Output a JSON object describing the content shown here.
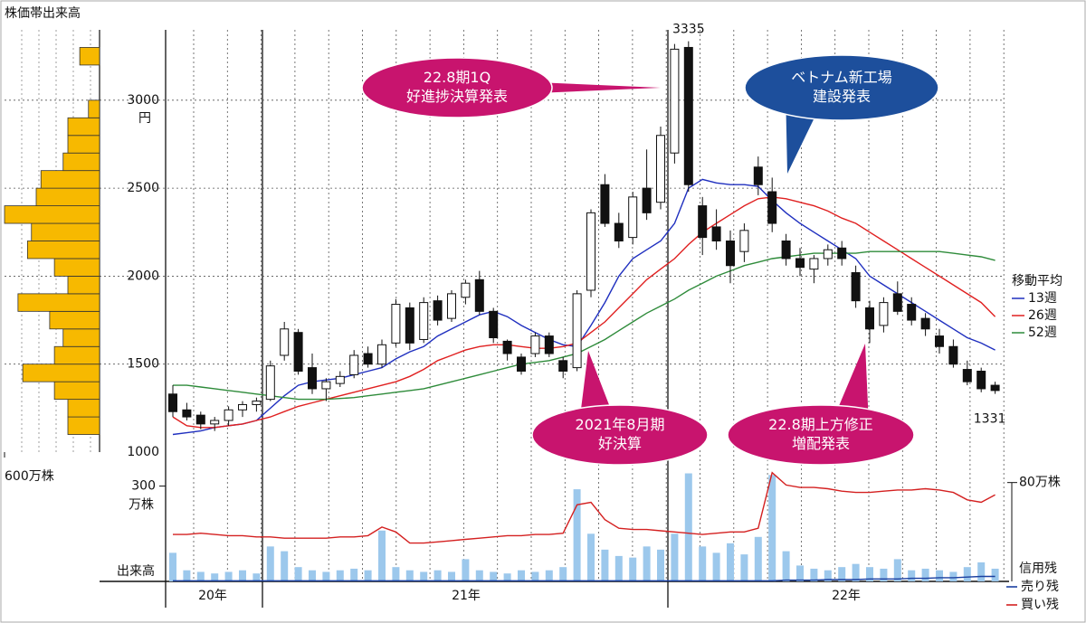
{
  "chart_data": [
    {
      "type": "candlestick",
      "x_labels": [
        "20年",
        "21年",
        "22年"
      ],
      "open": [
        1330,
        1240,
        1210,
        1160,
        1180,
        1240,
        1270,
        1300,
        1550,
        1680,
        1480,
        1360,
        1390,
        1440,
        1560,
        1500,
        1620,
        1820,
        1640,
        1860,
        1760,
        1880,
        1980,
        1800,
        1630,
        1540,
        1560,
        1660,
        1520,
        1480,
        1920,
        2520,
        2300,
        2220,
        2500,
        2420,
        2700,
        3300,
        2400,
        2280,
        2200,
        2140,
        2620,
        2480,
        2200,
        2100,
        2040,
        2100,
        2160,
        2020,
        1820,
        1720,
        1900,
        1840,
        1760,
        1660,
        1600,
        1470,
        1460,
        1380
      ],
      "high": [
        1380,
        1280,
        1230,
        1200,
        1260,
        1290,
        1310,
        1520,
        1740,
        1700,
        1560,
        1420,
        1460,
        1580,
        1600,
        1640,
        1870,
        1850,
        1880,
        1890,
        1920,
        1980,
        2030,
        1820,
        1640,
        1560,
        1680,
        1680,
        1540,
        1920,
        2380,
        2580,
        2360,
        2480,
        2720,
        2850,
        3320,
        3335,
        2450,
        2380,
        2260,
        2300,
        2680,
        2560,
        2240,
        2160,
        2120,
        2180,
        2200,
        2060,
        1860,
        1880,
        1970,
        1880,
        1790,
        1700,
        1640,
        1520,
        1480,
        1400
      ],
      "low": [
        1200,
        1180,
        1130,
        1120,
        1150,
        1200,
        1230,
        1290,
        1520,
        1440,
        1330,
        1290,
        1370,
        1420,
        1480,
        1480,
        1600,
        1580,
        1620,
        1720,
        1740,
        1840,
        1780,
        1620,
        1520,
        1440,
        1540,
        1540,
        1420,
        1460,
        1880,
        2280,
        2160,
        2180,
        2320,
        2380,
        2640,
        2480,
        2120,
        2150,
        1960,
        2080,
        2460,
        2250,
        2060,
        2000,
        1960,
        2060,
        2060,
        1820,
        1620,
        1680,
        1780,
        1720,
        1660,
        1560,
        1480,
        1380,
        1340,
        1331
      ],
      "close": [
        1230,
        1200,
        1160,
        1180,
        1240,
        1270,
        1290,
        1490,
        1700,
        1460,
        1360,
        1400,
        1430,
        1550,
        1500,
        1610,
        1840,
        1620,
        1850,
        1750,
        1900,
        1960,
        1800,
        1650,
        1560,
        1460,
        1660,
        1560,
        1460,
        1900,
        2360,
        2300,
        2200,
        2450,
        2360,
        2800,
        3290,
        2520,
        2220,
        2200,
        2060,
        2260,
        2520,
        2300,
        2100,
        2050,
        2100,
        2150,
        2100,
        1860,
        1700,
        1850,
        1800,
        1750,
        1700,
        1600,
        1500,
        1400,
        1360,
        1350
      ],
      "ylim": [
        1000,
        3400
      ],
      "yticks": [
        1000,
        1500,
        2000,
        2500,
        3000
      ],
      "y_unit": "円",
      "grid": true,
      "legend_title": "移動平均",
      "series": [
        {
          "name": "13週",
          "color": "#1f2fbf",
          "values": [
            1100,
            1110,
            1120,
            1140,
            1150,
            1160,
            1180,
            1250,
            1320,
            1380,
            1400,
            1410,
            1420,
            1440,
            1460,
            1480,
            1530,
            1570,
            1600,
            1660,
            1700,
            1740,
            1780,
            1800,
            1770,
            1720,
            1680,
            1640,
            1610,
            1600,
            1720,
            1850,
            2000,
            2100,
            2150,
            2200,
            2300,
            2500,
            2550,
            2530,
            2520,
            2520,
            2510,
            2430,
            2360,
            2300,
            2250,
            2200,
            2150,
            2100,
            2000,
            1950,
            1900,
            1850,
            1800,
            1750,
            1700,
            1650,
            1620,
            1580
          ]
        },
        {
          "name": "26週",
          "color": "#e02020",
          "values": [
            1200,
            1150,
            1140,
            1140,
            1150,
            1160,
            1180,
            1200,
            1230,
            1260,
            1280,
            1300,
            1320,
            1340,
            1360,
            1380,
            1400,
            1430,
            1470,
            1520,
            1550,
            1580,
            1600,
            1610,
            1610,
            1600,
            1590,
            1590,
            1600,
            1620,
            1680,
            1740,
            1820,
            1900,
            1980,
            2040,
            2100,
            2180,
            2250,
            2300,
            2350,
            2400,
            2440,
            2450,
            2440,
            2420,
            2400,
            2370,
            2330,
            2300,
            2250,
            2200,
            2150,
            2100,
            2050,
            2000,
            1950,
            1900,
            1850,
            1770
          ]
        },
        {
          "name": "52週",
          "color": "#2e8b3a",
          "values": [
            1380,
            1380,
            1370,
            1360,
            1350,
            1340,
            1330,
            1320,
            1310,
            1300,
            1300,
            1300,
            1305,
            1310,
            1320,
            1330,
            1340,
            1350,
            1360,
            1380,
            1400,
            1420,
            1440,
            1460,
            1480,
            1500,
            1510,
            1520,
            1540,
            1560,
            1600,
            1640,
            1690,
            1740,
            1790,
            1830,
            1870,
            1920,
            1960,
            2000,
            2030,
            2060,
            2080,
            2100,
            2110,
            2120,
            2130,
            2130,
            2130,
            2130,
            2140,
            2140,
            2140,
            2140,
            2140,
            2140,
            2130,
            2120,
            2110,
            2090
          ]
        }
      ],
      "annotations": [
        {
          "lines": [
            "22.8期1Q",
            "好進捗決算発表"
          ]
        },
        {
          "lines": [
            "ベトナム新工場",
            "建設発表"
          ]
        },
        {
          "lines": [
            "2021年8月期",
            "好決算"
          ]
        },
        {
          "lines": [
            "22.8期上方修正",
            "増配発表"
          ]
        }
      ]
    },
    {
      "type": "bar",
      "label": "出来高",
      "y_unit": "万株",
      "color": "#9cc8ec",
      "values": [
        90,
        35,
        30,
        25,
        30,
        35,
        25,
        110,
        95,
        45,
        35,
        30,
        35,
        40,
        35,
        160,
        45,
        35,
        30,
        35,
        30,
        70,
        35,
        30,
        25,
        35,
        30,
        35,
        45,
        290,
        150,
        100,
        80,
        75,
        110,
        100,
        150,
        340,
        110,
        90,
        120,
        85,
        140,
        335,
        95,
        50,
        40,
        35,
        45,
        55,
        45,
        40,
        70,
        35,
        40,
        35,
        30,
        45,
        60,
        40
      ],
      "ylim": [
        0,
        350
      ],
      "yticks": [
        300
      ],
      "y2lim": [
        0,
        90
      ],
      "y2ticks": [
        {
          "value": 80,
          "label": "80万株"
        }
      ],
      "y2_label": "信用残",
      "series": [
        {
          "name": "売り残",
          "color": "#1a3fa0",
          "axis": "y2",
          "values": [
            0.5,
            0.5,
            0.5,
            0.5,
            0.5,
            0.5,
            0.5,
            0.5,
            0.5,
            0.5,
            0.5,
            0.5,
            0.5,
            0.5,
            0.5,
            0.5,
            0.5,
            0.5,
            0.5,
            0.5,
            0.5,
            0.5,
            0.5,
            0.5,
            0.5,
            0.5,
            0.5,
            0.5,
            0.5,
            0.5,
            0.5,
            0.5,
            0.5,
            0.5,
            0.5,
            0.5,
            0.5,
            0.5,
            0.5,
            0.5,
            0.5,
            0.5,
            0.5,
            0.5,
            1,
            1,
            1,
            1.5,
            1.5,
            1.5,
            2,
            2,
            2,
            2.5,
            2.5,
            3,
            3,
            3.5,
            4,
            4
          ]
        },
        {
          "name": "買い残",
          "color": "#d42020",
          "axis": "y2",
          "values": [
            38,
            38,
            39,
            38,
            37,
            37,
            36,
            36,
            35,
            35,
            35,
            35,
            36,
            36,
            37,
            44,
            40,
            31,
            31,
            32,
            33,
            34,
            35,
            36,
            37,
            37,
            38,
            38,
            39,
            62,
            64,
            50,
            43,
            42,
            42,
            41,
            40,
            39,
            38,
            39,
            40,
            40,
            43,
            88,
            78,
            76,
            76,
            75,
            73,
            72,
            72,
            73,
            74,
            74,
            75,
            74,
            72,
            66,
            64,
            70
          ]
        }
      ]
    },
    {
      "type": "histogram",
      "title": "株価帯出来高",
      "color": "#f7b900",
      "bins": [
        1100,
        1200,
        1300,
        1400,
        1500,
        1600,
        1700,
        1800,
        1900,
        2000,
        2100,
        2200,
        2300,
        2400,
        2500,
        2600,
        2700,
        2800,
        2900,
        3000,
        3100,
        3200,
        3300
      ],
      "values": [
        200,
        200,
        285,
        485,
        285,
        230,
        315,
        515,
        200,
        285,
        455,
        430,
        600,
        400,
        370,
        230,
        200,
        200,
        70,
        0,
        0,
        125
      ],
      "xlim": [
        0,
        600
      ],
      "xticks": [
        {
          "value": 600,
          "label": "600万株"
        }
      ]
    }
  ]
}
